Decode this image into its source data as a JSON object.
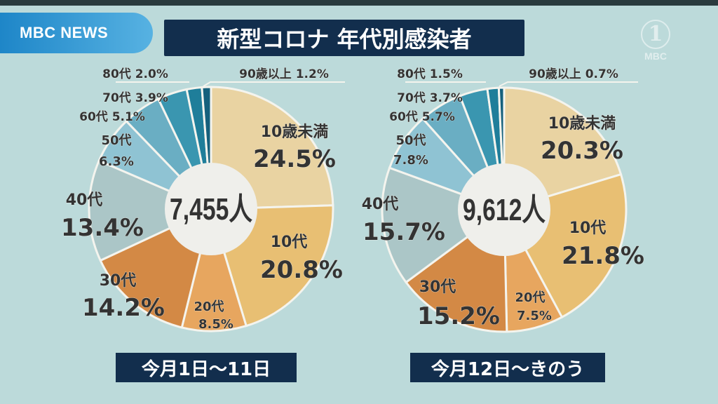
{
  "header": {
    "brand": "MBC NEWS",
    "title": "新型コロナ 年代別感染者",
    "channel_logo": "1",
    "channel_logo_text": "MBC"
  },
  "chart_data": [
    {
      "type": "pie",
      "donut": true,
      "center_label": "7,455人",
      "period_label": "今月1日～11日",
      "start": "12 o'clock, clockwise",
      "categories": [
        "10歳未満",
        "10代",
        "20代",
        "30代",
        "40代",
        "50代",
        "60代",
        "70代",
        "80代",
        "90歳以上"
      ],
      "values": [
        24.5,
        20.8,
        8.5,
        14.2,
        13.4,
        6.3,
        5.1,
        3.9,
        2.0,
        1.2
      ],
      "value_labels": [
        "24.5%",
        "20.8%",
        "8.5%",
        "14.2%",
        "13.4%",
        "6.3%",
        "5.1%",
        "3.9%",
        "2.0%",
        "1.2%"
      ],
      "colors": [
        "#e9d3a2",
        "#e8bf73",
        "#e7a65f",
        "#d38945",
        "#abc6c7",
        "#8fc3d3",
        "#6aaec3",
        "#3a96b0",
        "#1f7e9a",
        "#15607c"
      ]
    },
    {
      "type": "pie",
      "donut": true,
      "center_label": "9,612人",
      "period_label": "今月12日～きのう",
      "start": "12 o'clock, clockwise",
      "categories": [
        "10歳未満",
        "10代",
        "20代",
        "30代",
        "40代",
        "50代",
        "60代",
        "70代",
        "80代",
        "90歳以上"
      ],
      "values": [
        20.3,
        21.8,
        7.5,
        15.2,
        15.7,
        7.8,
        5.7,
        3.7,
        1.5,
        0.7
      ],
      "value_labels": [
        "20.3%",
        "21.8%",
        "7.5%",
        "15.2%",
        "15.7%",
        "7.8%",
        "5.7%",
        "3.7%",
        "1.5%",
        "0.7%"
      ],
      "colors": [
        "#e9d3a2",
        "#e8bf73",
        "#e7a65f",
        "#d38945",
        "#abc6c7",
        "#8fc3d3",
        "#6aaec3",
        "#3a96b0",
        "#1f7e9a",
        "#15607c"
      ]
    }
  ]
}
